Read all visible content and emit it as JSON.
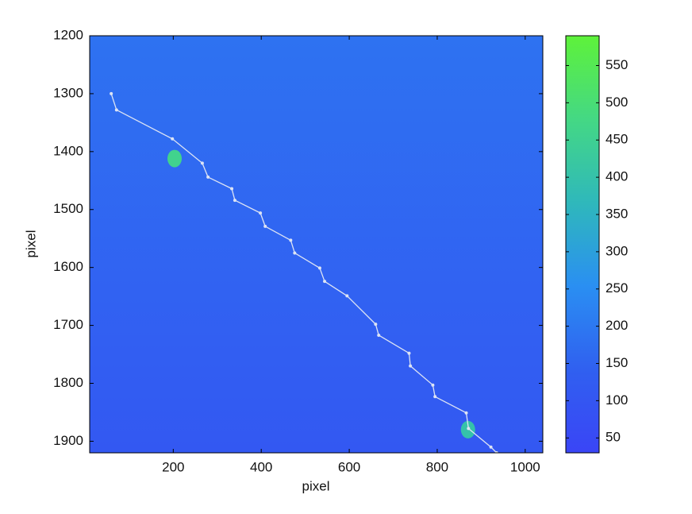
{
  "chart_data": {
    "type": "image-line",
    "x_label": "pixel",
    "y_label": "pixel",
    "xlim": [
      10,
      1040
    ],
    "ylim": [
      1920,
      1200
    ],
    "xticks": [
      200,
      400,
      600,
      800,
      1000
    ],
    "yticks": [
      1200,
      1300,
      1400,
      1500,
      1600,
      1700,
      1800,
      1900
    ],
    "clim": [
      30,
      590
    ],
    "cticks": [
      50,
      100,
      150,
      200,
      250,
      300,
      350,
      400,
      450,
      500,
      550
    ],
    "colormap": [
      "#3a45f6",
      "#3060f0",
      "#2a8ff2",
      "#2fb8bb",
      "#44d884",
      "#5ef23a"
    ],
    "background_values": [
      185,
      110
    ],
    "spots": [
      {
        "x": 203,
        "y": 1412,
        "value": 460
      },
      {
        "x": 870,
        "y": 1880,
        "value": 400
      }
    ],
    "series": [
      {
        "color": "#dde4f4",
        "x": [
          59,
          71,
          198,
          266,
          279,
          333,
          340,
          398,
          409,
          467,
          476,
          533,
          544,
          595,
          660,
          667,
          736,
          739,
          790,
          795,
          866,
          871,
          922,
          935
        ],
        "y": [
          1300,
          1328,
          1378,
          1420,
          1444,
          1464,
          1484,
          1506,
          1529,
          1553,
          1575,
          1601,
          1624,
          1649,
          1698,
          1717,
          1748,
          1770,
          1803,
          1823,
          1851,
          1878,
          1910,
          1920
        ]
      }
    ]
  }
}
